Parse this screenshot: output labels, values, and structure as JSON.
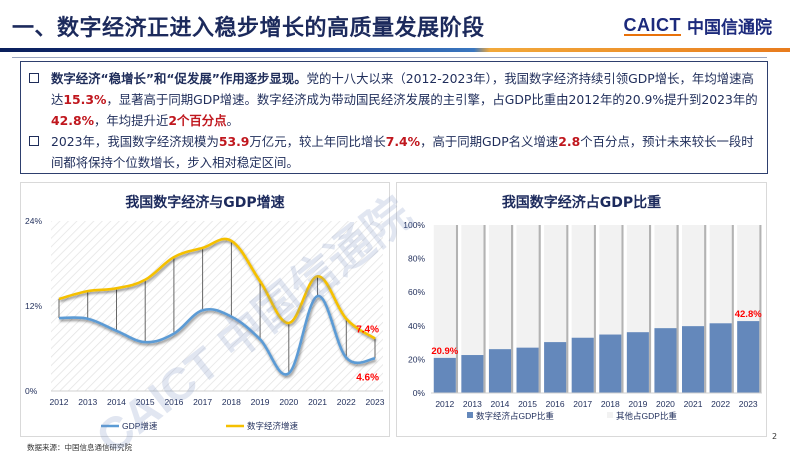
{
  "header": {
    "title": "一、数字经济正进入稳步增长的高质量发展阶段",
    "logo_en": "CAICT",
    "logo_cn": "中国信通院"
  },
  "summary": {
    "p1": {
      "lead": "数字经济“稳增长”和“促发展”作用逐步显现。",
      "t1": "党的十八大以来（2012-2023年），我国数字经济持续引领GDP增长，年均增速高达",
      "v1": "15.3%",
      "t2": "，显著高于同期GDP增速。数字经济成为带动国民经济发展的主引擎，占GDP比重由2012年的20.9%提升到2023年的",
      "v2": "42.8%",
      "t3": "，年均提升近",
      "v3": "2个百分点",
      "t4": "。"
    },
    "p2": {
      "t1": "2023年，我国数字经济规模为",
      "v1": "53.9",
      "t2": "万亿元，较上年同比增长",
      "v2": "7.4%",
      "t3": "，高于同期GDP名义增速",
      "v3": "2.8",
      "t4": "个百分点，预计未来较长一段时间都将保持个位数增长，步入相对稳定区间。"
    }
  },
  "chart_data": [
    {
      "type": "line",
      "title": "我国数字经济与GDP增速",
      "xlabel": "",
      "ylabel": "",
      "x": [
        "2012",
        "2013",
        "2014",
        "2015",
        "2016",
        "2017",
        "2018",
        "2019",
        "2020",
        "2021",
        "2022",
        "2023"
      ],
      "ylim": [
        0,
        24
      ],
      "yticks": [
        "0%",
        "12%",
        "24%"
      ],
      "yticks_values": [
        0,
        12,
        24
      ],
      "series": [
        {
          "name": "GDP增速",
          "color": "#5b9bd5",
          "values": [
            10.3,
            10.2,
            8.5,
            6.9,
            8.1,
            11.4,
            10.5,
            7.3,
            2.5,
            13.4,
            4.7,
            4.6
          ]
        },
        {
          "name": "数字经济增速",
          "color": "#f5c000",
          "values": [
            13.0,
            14.1,
            14.5,
            15.7,
            18.9,
            20.2,
            21.2,
            15.5,
            9.6,
            16.2,
            10.2,
            7.4
          ]
        }
      ],
      "annotations": [
        {
          "text": "7.4%",
          "series": "数字经济增速",
          "x": "2023",
          "color": "#ff0000"
        },
        {
          "text": "4.6%",
          "series": "GDP增速",
          "x": "2023",
          "color": "#ff0000"
        }
      ],
      "legend": "bottom",
      "grid": false
    },
    {
      "type": "bar",
      "stacked": true,
      "title": "我国数字经济占GDP比重",
      "xlabel": "",
      "ylabel": "",
      "categories": [
        "2012",
        "2013",
        "2014",
        "2015",
        "2016",
        "2017",
        "2018",
        "2019",
        "2020",
        "2021",
        "2022",
        "2023"
      ],
      "ylim": [
        0,
        100
      ],
      "yticks": [
        "0%",
        "20%",
        "40%",
        "60%",
        "80%",
        "100%"
      ],
      "yticks_values": [
        0,
        20,
        40,
        60,
        80,
        100
      ],
      "series": [
        {
          "name": "数字经济占GDP比重",
          "color": "#6488bb",
          "values": [
            20.9,
            22.6,
            26.1,
            27.0,
            30.3,
            32.9,
            34.8,
            36.2,
            38.6,
            39.8,
            41.5,
            42.8
          ]
        },
        {
          "name": "其他占GDP比重",
          "color": "#f2f2f2",
          "values": [
            79.1,
            77.4,
            73.9,
            73.0,
            69.7,
            67.1,
            65.2,
            63.8,
            61.4,
            60.2,
            58.5,
            57.2
          ]
        }
      ],
      "annotations": [
        {
          "text": "20.9%",
          "x": "2012",
          "color": "#ff0000"
        },
        {
          "text": "42.8%",
          "x": "2023",
          "color": "#ff0000"
        }
      ],
      "legend": "bottom",
      "grid": false
    }
  ],
  "footer": {
    "source": "数据来源：中国信息通信研究院",
    "page": "2"
  },
  "watermark": {
    "en": "CAICT",
    "cn": "中国信通院"
  }
}
